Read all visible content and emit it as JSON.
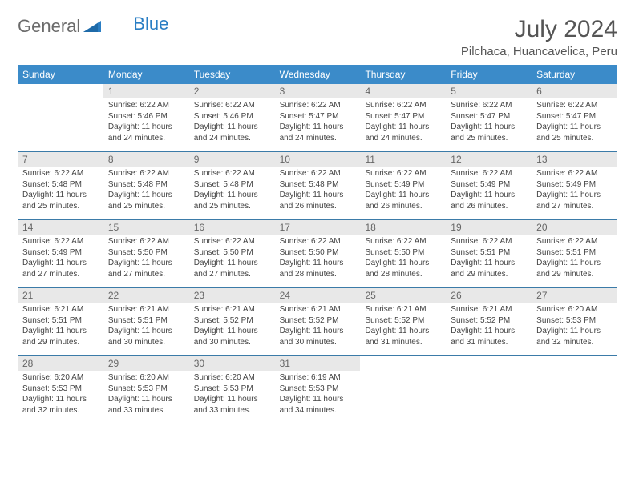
{
  "logo": {
    "text1": "General",
    "text2": "Blue"
  },
  "title": "July 2024",
  "location": "Pilchaca, Huancavelica, Peru",
  "colors": {
    "header_bg": "#3b8bc9",
    "header_text": "#ffffff",
    "daynum_bg": "#e8e8e8",
    "row_border": "#3b7ba8",
    "logo_gray": "#6b6b6b",
    "logo_blue": "#2a7ec4"
  },
  "weekdays": [
    "Sunday",
    "Monday",
    "Tuesday",
    "Wednesday",
    "Thursday",
    "Friday",
    "Saturday"
  ],
  "weeks": [
    [
      {
        "day": "",
        "sunrise": "",
        "sunset": "",
        "daylight": ""
      },
      {
        "day": "1",
        "sunrise": "Sunrise: 6:22 AM",
        "sunset": "Sunset: 5:46 PM",
        "daylight": "Daylight: 11 hours and 24 minutes."
      },
      {
        "day": "2",
        "sunrise": "Sunrise: 6:22 AM",
        "sunset": "Sunset: 5:46 PM",
        "daylight": "Daylight: 11 hours and 24 minutes."
      },
      {
        "day": "3",
        "sunrise": "Sunrise: 6:22 AM",
        "sunset": "Sunset: 5:47 PM",
        "daylight": "Daylight: 11 hours and 24 minutes."
      },
      {
        "day": "4",
        "sunrise": "Sunrise: 6:22 AM",
        "sunset": "Sunset: 5:47 PM",
        "daylight": "Daylight: 11 hours and 24 minutes."
      },
      {
        "day": "5",
        "sunrise": "Sunrise: 6:22 AM",
        "sunset": "Sunset: 5:47 PM",
        "daylight": "Daylight: 11 hours and 25 minutes."
      },
      {
        "day": "6",
        "sunrise": "Sunrise: 6:22 AM",
        "sunset": "Sunset: 5:47 PM",
        "daylight": "Daylight: 11 hours and 25 minutes."
      }
    ],
    [
      {
        "day": "7",
        "sunrise": "Sunrise: 6:22 AM",
        "sunset": "Sunset: 5:48 PM",
        "daylight": "Daylight: 11 hours and 25 minutes."
      },
      {
        "day": "8",
        "sunrise": "Sunrise: 6:22 AM",
        "sunset": "Sunset: 5:48 PM",
        "daylight": "Daylight: 11 hours and 25 minutes."
      },
      {
        "day": "9",
        "sunrise": "Sunrise: 6:22 AM",
        "sunset": "Sunset: 5:48 PM",
        "daylight": "Daylight: 11 hours and 25 minutes."
      },
      {
        "day": "10",
        "sunrise": "Sunrise: 6:22 AM",
        "sunset": "Sunset: 5:48 PM",
        "daylight": "Daylight: 11 hours and 26 minutes."
      },
      {
        "day": "11",
        "sunrise": "Sunrise: 6:22 AM",
        "sunset": "Sunset: 5:49 PM",
        "daylight": "Daylight: 11 hours and 26 minutes."
      },
      {
        "day": "12",
        "sunrise": "Sunrise: 6:22 AM",
        "sunset": "Sunset: 5:49 PM",
        "daylight": "Daylight: 11 hours and 26 minutes."
      },
      {
        "day": "13",
        "sunrise": "Sunrise: 6:22 AM",
        "sunset": "Sunset: 5:49 PM",
        "daylight": "Daylight: 11 hours and 27 minutes."
      }
    ],
    [
      {
        "day": "14",
        "sunrise": "Sunrise: 6:22 AM",
        "sunset": "Sunset: 5:49 PM",
        "daylight": "Daylight: 11 hours and 27 minutes."
      },
      {
        "day": "15",
        "sunrise": "Sunrise: 6:22 AM",
        "sunset": "Sunset: 5:50 PM",
        "daylight": "Daylight: 11 hours and 27 minutes."
      },
      {
        "day": "16",
        "sunrise": "Sunrise: 6:22 AM",
        "sunset": "Sunset: 5:50 PM",
        "daylight": "Daylight: 11 hours and 27 minutes."
      },
      {
        "day": "17",
        "sunrise": "Sunrise: 6:22 AM",
        "sunset": "Sunset: 5:50 PM",
        "daylight": "Daylight: 11 hours and 28 minutes."
      },
      {
        "day": "18",
        "sunrise": "Sunrise: 6:22 AM",
        "sunset": "Sunset: 5:50 PM",
        "daylight": "Daylight: 11 hours and 28 minutes."
      },
      {
        "day": "19",
        "sunrise": "Sunrise: 6:22 AM",
        "sunset": "Sunset: 5:51 PM",
        "daylight": "Daylight: 11 hours and 29 minutes."
      },
      {
        "day": "20",
        "sunrise": "Sunrise: 6:22 AM",
        "sunset": "Sunset: 5:51 PM",
        "daylight": "Daylight: 11 hours and 29 minutes."
      }
    ],
    [
      {
        "day": "21",
        "sunrise": "Sunrise: 6:21 AM",
        "sunset": "Sunset: 5:51 PM",
        "daylight": "Daylight: 11 hours and 29 minutes."
      },
      {
        "day": "22",
        "sunrise": "Sunrise: 6:21 AM",
        "sunset": "Sunset: 5:51 PM",
        "daylight": "Daylight: 11 hours and 30 minutes."
      },
      {
        "day": "23",
        "sunrise": "Sunrise: 6:21 AM",
        "sunset": "Sunset: 5:52 PM",
        "daylight": "Daylight: 11 hours and 30 minutes."
      },
      {
        "day": "24",
        "sunrise": "Sunrise: 6:21 AM",
        "sunset": "Sunset: 5:52 PM",
        "daylight": "Daylight: 11 hours and 30 minutes."
      },
      {
        "day": "25",
        "sunrise": "Sunrise: 6:21 AM",
        "sunset": "Sunset: 5:52 PM",
        "daylight": "Daylight: 11 hours and 31 minutes."
      },
      {
        "day": "26",
        "sunrise": "Sunrise: 6:21 AM",
        "sunset": "Sunset: 5:52 PM",
        "daylight": "Daylight: 11 hours and 31 minutes."
      },
      {
        "day": "27",
        "sunrise": "Sunrise: 6:20 AM",
        "sunset": "Sunset: 5:53 PM",
        "daylight": "Daylight: 11 hours and 32 minutes."
      }
    ],
    [
      {
        "day": "28",
        "sunrise": "Sunrise: 6:20 AM",
        "sunset": "Sunset: 5:53 PM",
        "daylight": "Daylight: 11 hours and 32 minutes."
      },
      {
        "day": "29",
        "sunrise": "Sunrise: 6:20 AM",
        "sunset": "Sunset: 5:53 PM",
        "daylight": "Daylight: 11 hours and 33 minutes."
      },
      {
        "day": "30",
        "sunrise": "Sunrise: 6:20 AM",
        "sunset": "Sunset: 5:53 PM",
        "daylight": "Daylight: 11 hours and 33 minutes."
      },
      {
        "day": "31",
        "sunrise": "Sunrise: 6:19 AM",
        "sunset": "Sunset: 5:53 PM",
        "daylight": "Daylight: 11 hours and 34 minutes."
      },
      {
        "day": "",
        "sunrise": "",
        "sunset": "",
        "daylight": ""
      },
      {
        "day": "",
        "sunrise": "",
        "sunset": "",
        "daylight": ""
      },
      {
        "day": "",
        "sunrise": "",
        "sunset": "",
        "daylight": ""
      }
    ]
  ]
}
